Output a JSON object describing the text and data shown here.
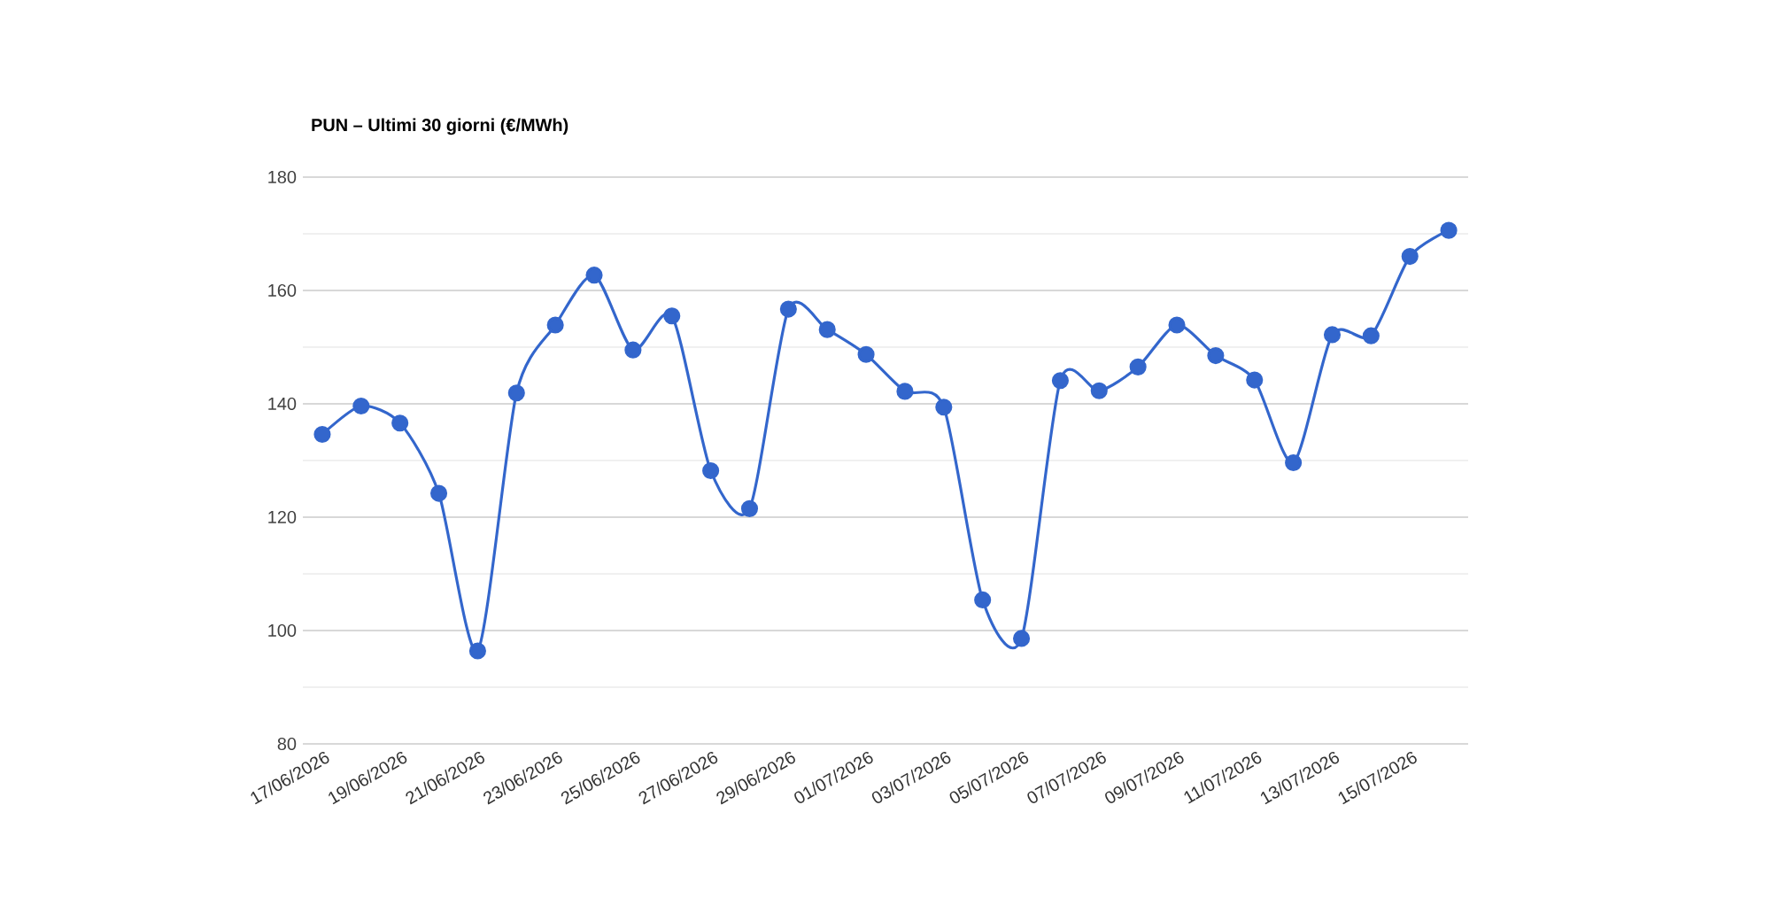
{
  "chart_data": {
    "type": "line",
    "title": "PUN – Ultimi 30 giorni (€/MWh)",
    "categories": [
      "17/06/2026",
      null,
      "19/06/2026",
      null,
      "21/06/2026",
      null,
      "23/06/2026",
      null,
      "25/06/2026",
      null,
      "27/06/2026",
      null,
      "29/06/2026",
      null,
      "01/07/2026",
      null,
      "03/07/2026",
      null,
      "05/07/2026",
      null,
      "07/07/2026",
      null,
      "09/07/2026",
      null,
      "11/07/2026",
      null,
      "13/07/2026",
      null,
      "15/07/2026",
      null
    ],
    "series": [
      {
        "color": "#3366cc",
        "values": [
          134.6,
          139.6,
          136.6,
          124.2,
          96.4,
          141.9,
          153.9,
          162.7,
          149.5,
          155.5,
          128.2,
          121.5,
          156.7,
          153.1,
          148.7,
          142.2,
          139.4,
          105.4,
          98.6,
          144.1,
          142.3,
          146.5,
          153.9,
          148.5,
          144.2,
          129.6,
          152.2,
          152.0,
          166.0,
          170.6
        ]
      }
    ],
    "ylim": [
      80,
      180
    ],
    "yticks": [
      80,
      {
        "value": 90,
        "label": null
      },
      100,
      {
        "value": 110,
        "label": null
      },
      120,
      {
        "value": 130,
        "label": null
      },
      140,
      {
        "value": 150,
        "label": null
      },
      160,
      {
        "value": 170,
        "label": null
      },
      180
    ],
    "grid": "y",
    "marker": "circle",
    "line_style": "solid"
  }
}
